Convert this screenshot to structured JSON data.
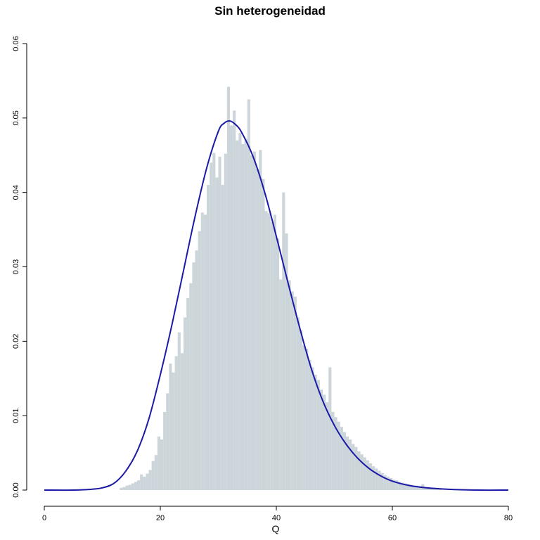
{
  "chart_data": {
    "type": "bar",
    "title": "Sin heterogeneidad",
    "xlabel": "Q",
    "ylabel": "",
    "xlim": [
      0,
      80
    ],
    "ylim": [
      0,
      0.06
    ],
    "x_ticks": [
      "0",
      "20",
      "40",
      "60",
      "80"
    ],
    "y_ticks": [
      "0.00",
      "0.01",
      "0.02",
      "0.03",
      "0.04",
      "0.05",
      "0.06"
    ],
    "grid": false,
    "colors": {
      "bars": "#ccd5da",
      "curve": "#1a1aa6",
      "axis": "#000000"
    },
    "histogram": {
      "bin_width": 0.5,
      "bins": [
        {
          "x": 13.0,
          "y": 0.0003
        },
        {
          "x": 13.5,
          "y": 0.0004
        },
        {
          "x": 14.0,
          "y": 0.0006
        },
        {
          "x": 14.5,
          "y": 0.0007
        },
        {
          "x": 15.0,
          "y": 0.0009
        },
        {
          "x": 15.5,
          "y": 0.0011
        },
        {
          "x": 16.0,
          "y": 0.0013
        },
        {
          "x": 16.5,
          "y": 0.0021
        },
        {
          "x": 17.0,
          "y": 0.0018
        },
        {
          "x": 17.5,
          "y": 0.0022
        },
        {
          "x": 18.0,
          "y": 0.0027
        },
        {
          "x": 18.5,
          "y": 0.0039
        },
        {
          "x": 19.0,
          "y": 0.0047
        },
        {
          "x": 19.5,
          "y": 0.0072
        },
        {
          "x": 20.0,
          "y": 0.0068
        },
        {
          "x": 20.5,
          "y": 0.0105
        },
        {
          "x": 21.0,
          "y": 0.013
        },
        {
          "x": 21.5,
          "y": 0.017
        },
        {
          "x": 22.0,
          "y": 0.0158
        },
        {
          "x": 22.5,
          "y": 0.018
        },
        {
          "x": 23.0,
          "y": 0.0212
        },
        {
          "x": 23.5,
          "y": 0.0184
        },
        {
          "x": 24.0,
          "y": 0.0232
        },
        {
          "x": 24.5,
          "y": 0.0258
        },
        {
          "x": 25.0,
          "y": 0.0278
        },
        {
          "x": 25.5,
          "y": 0.0306
        },
        {
          "x": 26.0,
          "y": 0.0322
        },
        {
          "x": 26.5,
          "y": 0.0348
        },
        {
          "x": 27.0,
          "y": 0.0373
        },
        {
          "x": 27.5,
          "y": 0.037
        },
        {
          "x": 28.0,
          "y": 0.041
        },
        {
          "x": 28.5,
          "y": 0.044
        },
        {
          "x": 29.0,
          "y": 0.0453
        },
        {
          "x": 29.5,
          "y": 0.042
        },
        {
          "x": 30.0,
          "y": 0.0448
        },
        {
          "x": 30.5,
          "y": 0.041
        },
        {
          "x": 31.0,
          "y": 0.0452
        },
        {
          "x": 31.5,
          "y": 0.0542
        },
        {
          "x": 32.0,
          "y": 0.049
        },
        {
          "x": 32.5,
          "y": 0.051
        },
        {
          "x": 33.0,
          "y": 0.047
        },
        {
          "x": 33.5,
          "y": 0.048
        },
        {
          "x": 34.0,
          "y": 0.0465
        },
        {
          "x": 34.5,
          "y": 0.0472
        },
        {
          "x": 35.0,
          "y": 0.0525
        },
        {
          "x": 35.5,
          "y": 0.045
        },
        {
          "x": 36.0,
          "y": 0.0455
        },
        {
          "x": 36.5,
          "y": 0.0432
        },
        {
          "x": 37.0,
          "y": 0.0457
        },
        {
          "x": 37.5,
          "y": 0.0418
        },
        {
          "x": 38.0,
          "y": 0.0375
        },
        {
          "x": 38.5,
          "y": 0.0372
        },
        {
          "x": 39.0,
          "y": 0.036
        },
        {
          "x": 39.5,
          "y": 0.037
        },
        {
          "x": 40.0,
          "y": 0.0338
        },
        {
          "x": 40.5,
          "y": 0.0283
        },
        {
          "x": 41.0,
          "y": 0.04
        },
        {
          "x": 41.5,
          "y": 0.0345
        },
        {
          "x": 42.0,
          "y": 0.0282
        },
        {
          "x": 42.5,
          "y": 0.0267
        },
        {
          "x": 43.0,
          "y": 0.026
        },
        {
          "x": 43.5,
          "y": 0.0232
        },
        {
          "x": 44.0,
          "y": 0.0215
        },
        {
          "x": 44.5,
          "y": 0.0195
        },
        {
          "x": 45.0,
          "y": 0.019
        },
        {
          "x": 45.5,
          "y": 0.0175
        },
        {
          "x": 46.0,
          "y": 0.0165
        },
        {
          "x": 46.5,
          "y": 0.0155
        },
        {
          "x": 47.0,
          "y": 0.0148
        },
        {
          "x": 47.5,
          "y": 0.0135
        },
        {
          "x": 48.0,
          "y": 0.0128
        },
        {
          "x": 48.5,
          "y": 0.0118
        },
        {
          "x": 49.0,
          "y": 0.0165
        },
        {
          "x": 49.5,
          "y": 0.0105
        },
        {
          "x": 50.0,
          "y": 0.0098
        },
        {
          "x": 50.5,
          "y": 0.0092
        },
        {
          "x": 51.0,
          "y": 0.0085
        },
        {
          "x": 51.5,
          "y": 0.0078
        },
        {
          "x": 52.0,
          "y": 0.0072
        },
        {
          "x": 52.5,
          "y": 0.0068
        },
        {
          "x": 53.0,
          "y": 0.0062
        },
        {
          "x": 53.5,
          "y": 0.0058
        },
        {
          "x": 54.0,
          "y": 0.0052
        },
        {
          "x": 54.5,
          "y": 0.0048
        },
        {
          "x": 55.0,
          "y": 0.0044
        },
        {
          "x": 55.5,
          "y": 0.004
        },
        {
          "x": 56.0,
          "y": 0.0036
        },
        {
          "x": 56.5,
          "y": 0.0032
        },
        {
          "x": 57.0,
          "y": 0.0029
        },
        {
          "x": 57.5,
          "y": 0.0026
        },
        {
          "x": 58.0,
          "y": 0.0023
        },
        {
          "x": 58.5,
          "y": 0.002
        },
        {
          "x": 59.0,
          "y": 0.0018
        },
        {
          "x": 59.5,
          "y": 0.0016
        },
        {
          "x": 60.0,
          "y": 0.0014
        },
        {
          "x": 60.5,
          "y": 0.0013
        },
        {
          "x": 61.0,
          "y": 0.0011
        },
        {
          "x": 61.5,
          "y": 0.001
        },
        {
          "x": 62.0,
          "y": 0.0009
        },
        {
          "x": 62.5,
          "y": 0.0008
        },
        {
          "x": 63.0,
          "y": 0.0007
        },
        {
          "x": 63.5,
          "y": 0.0006
        },
        {
          "x": 64.0,
          "y": 0.0006
        },
        {
          "x": 64.5,
          "y": 0.0005
        },
        {
          "x": 65.0,
          "y": 0.0008
        },
        {
          "x": 65.5,
          "y": 0.0004
        },
        {
          "x": 66.0,
          "y": 0.0004
        },
        {
          "x": 66.5,
          "y": 0.0003
        },
        {
          "x": 67.0,
          "y": 0.0003
        },
        {
          "x": 67.5,
          "y": 0.0003
        },
        {
          "x": 68.0,
          "y": 0.0002
        }
      ]
    },
    "density_curve": {
      "x": [
        0,
        5,
        8,
        10,
        12,
        14,
        16,
        18,
        20,
        22,
        24,
        26,
        28,
        30,
        31,
        32,
        33,
        34,
        36,
        38,
        40,
        42,
        44,
        46,
        48,
        50,
        52,
        54,
        56,
        58,
        60,
        63,
        66,
        70,
        75,
        80
      ],
      "y": [
        0.0,
        0.0,
        0.0001,
        0.0003,
        0.0009,
        0.0025,
        0.0052,
        0.0095,
        0.0155,
        0.0222,
        0.0295,
        0.0368,
        0.0433,
        0.0482,
        0.0493,
        0.0496,
        0.0491,
        0.0481,
        0.0448,
        0.04,
        0.0341,
        0.0279,
        0.0219,
        0.0164,
        0.012,
        0.0087,
        0.0062,
        0.0043,
        0.0029,
        0.0019,
        0.0012,
        0.0006,
        0.0003,
        0.0001,
        0.0,
        0.0
      ]
    }
  }
}
